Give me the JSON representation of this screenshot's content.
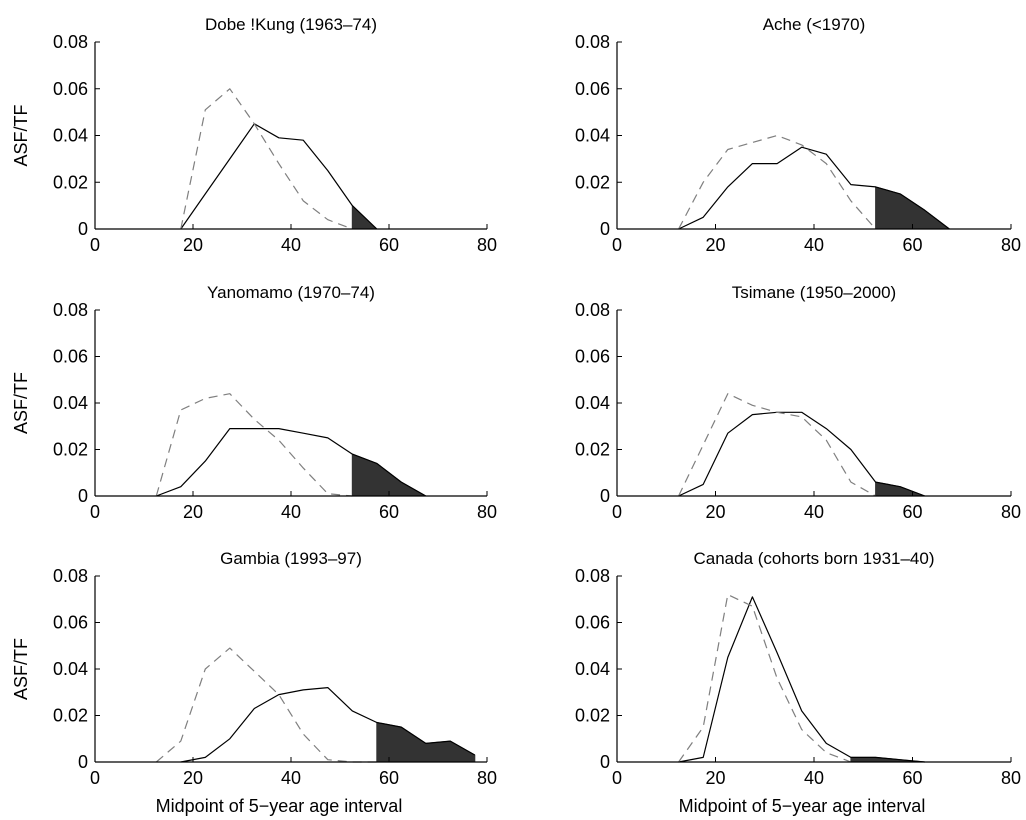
{
  "colors": {
    "solid": "#000000",
    "dashed": "#7f7f7f",
    "fill": "#333333",
    "axis": "#000000"
  },
  "chart_data": [
    {
      "type": "line",
      "title": "Dobe !Kung (1963–74)",
      "xlabel": "",
      "ylabel": "ASF/TF",
      "xlim": [
        0,
        80
      ],
      "ylim": [
        0,
        0.08
      ],
      "xticks": [
        "0",
        "20",
        "40",
        "60",
        "80"
      ],
      "yticks": [
        "0",
        "0.02",
        "0.04",
        "0.06",
        "0.08"
      ],
      "grid": false,
      "series": [
        {
          "style": "solid",
          "x": [
            17.5,
            22.5,
            27.5,
            32.5,
            37.5,
            42.5,
            47.5,
            52.5,
            57.5
          ],
          "y": [
            0,
            0.015,
            0.03,
            0.045,
            0.039,
            0.038,
            0.025,
            0.01,
            0
          ]
        },
        {
          "style": "dashed",
          "x": [
            17.5,
            22.5,
            27.5,
            32.5,
            37.5,
            42.5,
            47.5,
            52.5
          ],
          "y": [
            0,
            0.051,
            0.06,
            0.045,
            0.028,
            0.012,
            0.004,
            0
          ]
        }
      ],
      "shaded_from_x": 52.5
    },
    {
      "type": "line",
      "title": "Ache (<1970)",
      "xlabel": "",
      "ylabel": "",
      "xlim": [
        0,
        80
      ],
      "ylim": [
        0,
        0.08
      ],
      "xticks": [
        "0",
        "20",
        "40",
        "60",
        "80"
      ],
      "yticks": [
        "0",
        "0.02",
        "0.04",
        "0.06",
        "0.08"
      ],
      "grid": false,
      "series": [
        {
          "style": "solid",
          "x": [
            12.5,
            17.5,
            22.5,
            27.5,
            32.5,
            37.5,
            42.5,
            47.5,
            52.5,
            57.5,
            62.5,
            67.5
          ],
          "y": [
            0,
            0.005,
            0.018,
            0.028,
            0.028,
            0.035,
            0.032,
            0.019,
            0.018,
            0.015,
            0.008,
            0
          ]
        },
        {
          "style": "dashed",
          "x": [
            12.5,
            17.5,
            22.5,
            27.5,
            32.5,
            37.5,
            42.5,
            47.5,
            52.5
          ],
          "y": [
            0,
            0.02,
            0.034,
            0.037,
            0.04,
            0.036,
            0.028,
            0.012,
            0
          ]
        }
      ],
      "shaded_from_x": 52.5
    },
    {
      "type": "line",
      "title": "Yanomamo (1970–74)",
      "xlabel": "",
      "ylabel": "ASF/TF",
      "xlim": [
        0,
        80
      ],
      "ylim": [
        0,
        0.08
      ],
      "xticks": [
        "0",
        "20",
        "40",
        "60",
        "80"
      ],
      "yticks": [
        "0",
        "0.02",
        "0.04",
        "0.06",
        "0.08"
      ],
      "grid": false,
      "series": [
        {
          "style": "solid",
          "x": [
            12.5,
            17.5,
            22.5,
            27.5,
            32.5,
            37.5,
            42.5,
            47.5,
            52.5,
            57.5,
            62.5,
            67.5
          ],
          "y": [
            0,
            0.004,
            0.015,
            0.029,
            0.029,
            0.029,
            0.027,
            0.025,
            0.018,
            0.014,
            0.006,
            0
          ]
        },
        {
          "style": "dashed",
          "x": [
            12.5,
            17.5,
            22.5,
            27.5,
            32.5,
            37.5,
            42.5,
            47.5,
            52.5
          ],
          "y": [
            0,
            0.037,
            0.042,
            0.044,
            0.033,
            0.024,
            0.012,
            0.001,
            0
          ]
        }
      ],
      "shaded_from_x": 52.5
    },
    {
      "type": "line",
      "title": "Tsimane (1950–2000)",
      "xlabel": "",
      "ylabel": "",
      "xlim": [
        0,
        80
      ],
      "ylim": [
        0,
        0.08
      ],
      "xticks": [
        "0",
        "20",
        "40",
        "60",
        "80"
      ],
      "yticks": [
        "0",
        "0.02",
        "0.04",
        "0.06",
        "0.08"
      ],
      "grid": false,
      "series": [
        {
          "style": "solid",
          "x": [
            12.5,
            17.5,
            22.5,
            27.5,
            32.5,
            37.5,
            42.5,
            47.5,
            52.5,
            57.5,
            62.5
          ],
          "y": [
            0,
            0.005,
            0.027,
            0.035,
            0.036,
            0.036,
            0.029,
            0.02,
            0.006,
            0.004,
            0
          ]
        },
        {
          "style": "dashed",
          "x": [
            12.5,
            17.5,
            22.5,
            27.5,
            32.5,
            37.5,
            42.5,
            47.5,
            52.5
          ],
          "y": [
            0,
            0.022,
            0.044,
            0.039,
            0.036,
            0.034,
            0.024,
            0.006,
            0
          ]
        }
      ],
      "shaded_from_x": 52.5
    },
    {
      "type": "line",
      "title": "Gambia (1993–97)",
      "xlabel": "Midpoint of 5−year age interval",
      "ylabel": "ASF/TF",
      "xlim": [
        0,
        80
      ],
      "ylim": [
        0,
        0.08
      ],
      "xticks": [
        "0",
        "20",
        "40",
        "60",
        "80"
      ],
      "yticks": [
        "0",
        "0.02",
        "0.04",
        "0.06",
        "0.08"
      ],
      "grid": false,
      "series": [
        {
          "style": "solid",
          "x": [
            17.5,
            22.5,
            27.5,
            32.5,
            37.5,
            42.5,
            47.5,
            52.5,
            57.5,
            62.5,
            67.5,
            72.5,
            77.5
          ],
          "y": [
            0,
            0.002,
            0.01,
            0.023,
            0.029,
            0.031,
            0.032,
            0.022,
            0.017,
            0.015,
            0.008,
            0.009,
            0.003
          ]
        },
        {
          "style": "dashed",
          "x": [
            12.5,
            17.5,
            22.5,
            27.5,
            32.5,
            37.5,
            42.5,
            47.5,
            52.5,
            57.5
          ],
          "y": [
            0,
            0.009,
            0.04,
            0.049,
            0.039,
            0.029,
            0.012,
            0.001,
            0,
            0
          ]
        }
      ],
      "shaded_from_x": 57.5
    },
    {
      "type": "line",
      "title": "Canada (cohorts born 1931–40)",
      "xlabel": "Midpoint of 5−year age interval",
      "ylabel": "",
      "xlim": [
        0,
        80
      ],
      "ylim": [
        0,
        0.08
      ],
      "xticks": [
        "0",
        "20",
        "40",
        "60",
        "80"
      ],
      "yticks": [
        "0",
        "0.02",
        "0.04",
        "0.06",
        "0.08"
      ],
      "grid": false,
      "series": [
        {
          "style": "solid",
          "x": [
            12.5,
            17.5,
            22.5,
            27.5,
            32.5,
            37.5,
            42.5,
            47.5,
            52.5,
            57.5,
            62.5
          ],
          "y": [
            0,
            0.002,
            0.045,
            0.071,
            0.047,
            0.022,
            0.008,
            0.002,
            0.002,
            0.001,
            0
          ]
        },
        {
          "style": "dashed",
          "x": [
            12.5,
            17.5,
            22.5,
            27.5,
            32.5,
            37.5,
            42.5,
            47.5
          ],
          "y": [
            0,
            0.015,
            0.072,
            0.067,
            0.036,
            0.014,
            0.004,
            0
          ]
        }
      ],
      "shaded_from_x": 47.5
    }
  ]
}
